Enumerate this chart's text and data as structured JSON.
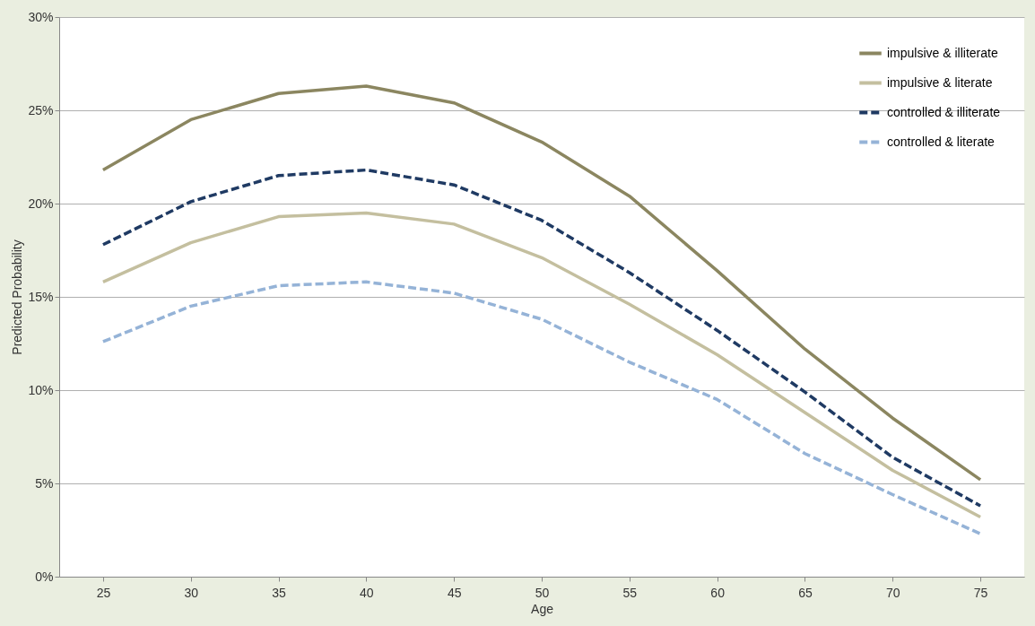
{
  "chart_data": {
    "type": "line",
    "xlabel": "Age",
    "ylabel": "Predicted Probability",
    "categories": [
      "25",
      "30",
      "35",
      "40",
      "45",
      "50",
      "55",
      "60",
      "65",
      "70",
      "75"
    ],
    "series": [
      {
        "name": "impulsive & illiterate",
        "color": "#8b8660",
        "line_style": "solid",
        "values": [
          21.8,
          24.5,
          25.9,
          26.3,
          25.4,
          23.3,
          20.4,
          16.4,
          12.2,
          8.5,
          5.2
        ]
      },
      {
        "name": "impulsive & literate",
        "color": "#c4bf9f",
        "line_style": "solid",
        "values": [
          15.8,
          17.9,
          19.3,
          19.5,
          18.9,
          17.1,
          14.6,
          11.9,
          8.8,
          5.7,
          3.2
        ]
      },
      {
        "name": "controlled & illiterate",
        "color": "#1f3a63",
        "line_style": "dashed",
        "values": [
          17.8,
          20.1,
          21.5,
          21.8,
          21.0,
          19.1,
          16.3,
          13.2,
          9.9,
          6.4,
          3.8
        ]
      },
      {
        "name": "controlled & literate",
        "color": "#95b3d7",
        "line_style": "dashed",
        "values": [
          12.6,
          14.5,
          15.6,
          15.8,
          15.2,
          13.8,
          11.5,
          9.5,
          6.6,
          4.4,
          2.3
        ]
      }
    ],
    "ylim": [
      0,
      30
    ],
    "yticks": [
      {
        "value": 0,
        "label": "0%"
      },
      {
        "value": 5,
        "label": "5%"
      },
      {
        "value": 10,
        "label": "10%"
      },
      {
        "value": 15,
        "label": "15%"
      },
      {
        "value": 20,
        "label": "20%"
      },
      {
        "value": 25,
        "label": "25%"
      },
      {
        "value": 30,
        "label": "30%"
      }
    ],
    "grid": "y",
    "legend": "top right",
    "marker": "none"
  }
}
